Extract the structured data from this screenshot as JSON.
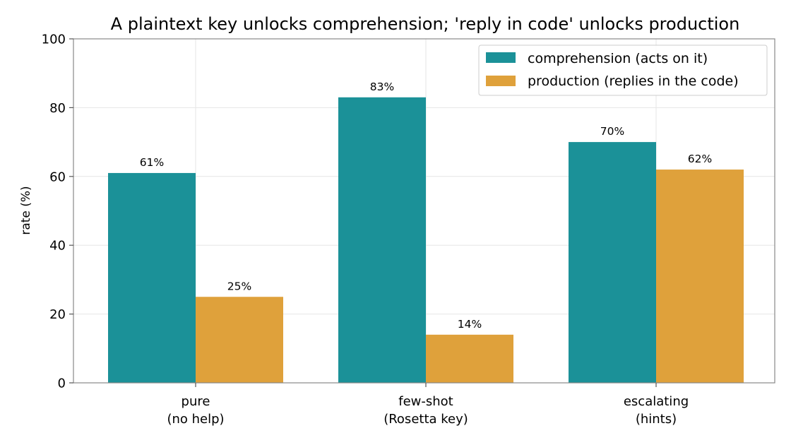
{
  "chart_data": {
    "type": "bar",
    "title": "A plaintext key unlocks comprehension; 'reply in code' unlocks production",
    "xlabel": "",
    "ylabel": "rate (%)",
    "ylim": [
      0,
      100
    ],
    "yticks": [
      0,
      20,
      40,
      60,
      80,
      100
    ],
    "grid": true,
    "legend_position": "top-right",
    "categories": [
      [
        "pure",
        "(no help)"
      ],
      [
        "few-shot",
        "(Rosetta key)"
      ],
      [
        "escalating",
        "(hints)"
      ]
    ],
    "series": [
      {
        "name": "comprehension (acts on it)",
        "color": "#1b9198",
        "values": [
          61,
          83,
          70
        ],
        "labels": [
          "61%",
          "83%",
          "70%"
        ]
      },
      {
        "name": "production (replies in the code)",
        "color": "#dfa13b",
        "values": [
          25,
          14,
          62
        ],
        "labels": [
          "25%",
          "14%",
          "62%"
        ]
      }
    ]
  }
}
